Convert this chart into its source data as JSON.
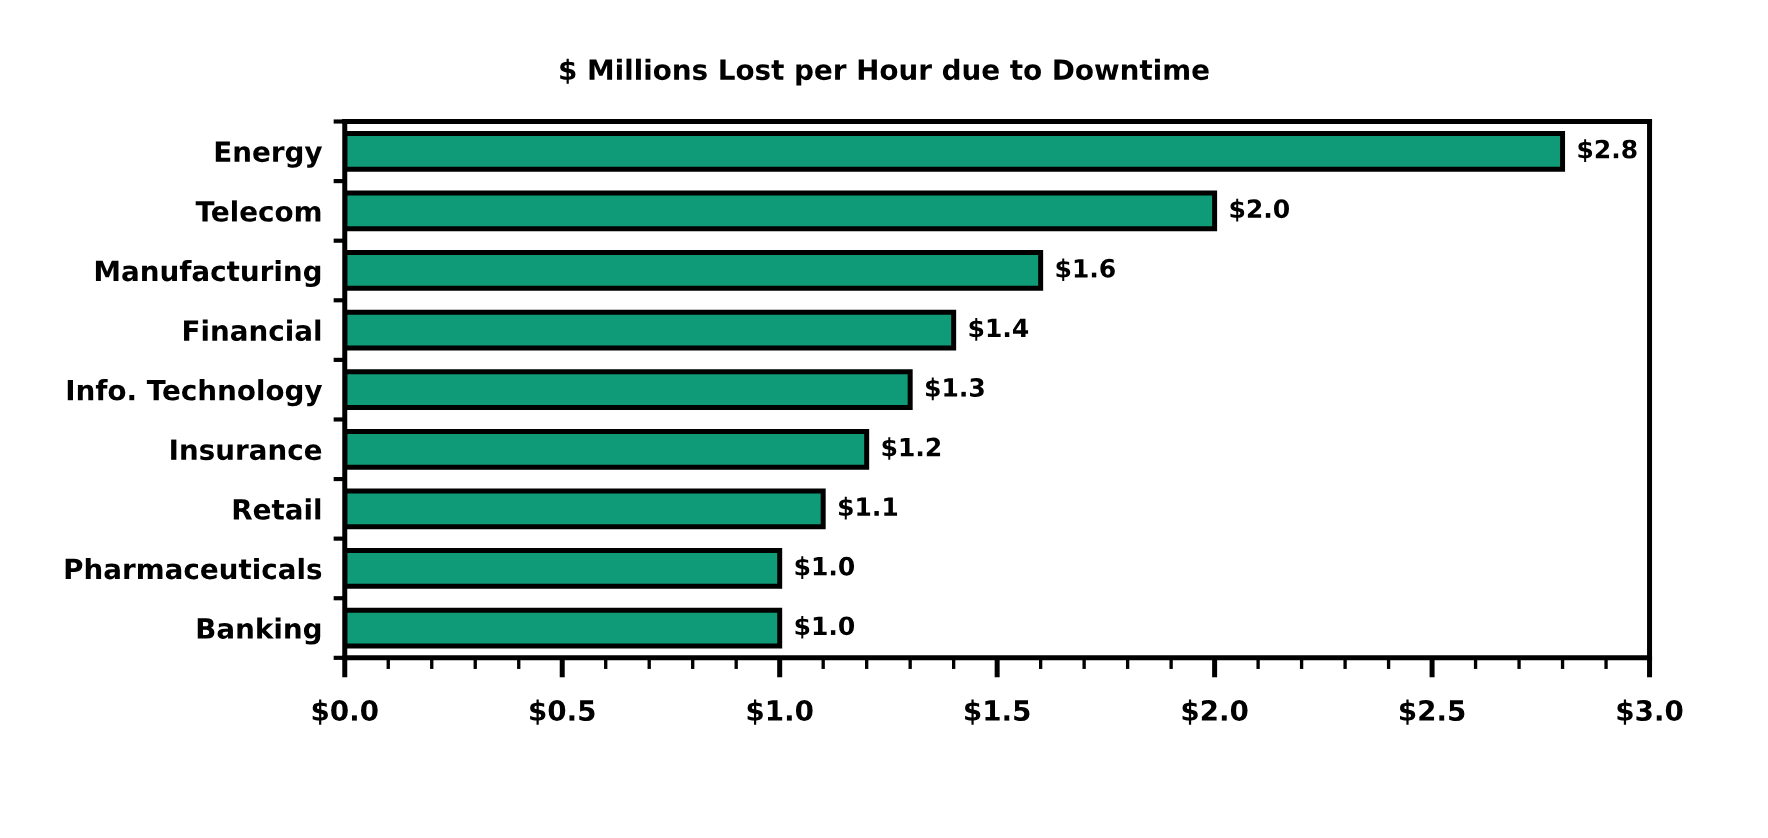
{
  "chart_data": {
    "type": "bar",
    "orientation": "horizontal",
    "title": "$ Millions Lost per Hour due to Downtime",
    "categories": [
      "Energy",
      "Telecom",
      "Manufacturing",
      "Financial",
      "Info. Technology",
      "Insurance",
      "Retail",
      "Pharmaceuticals",
      "Banking"
    ],
    "values": [
      2.8,
      2.0,
      1.6,
      1.4,
      1.3,
      1.2,
      1.1,
      1.0,
      1.0
    ],
    "value_labels": [
      "$2.8",
      "$2.0",
      "$1.6",
      "$1.4",
      "$1.3",
      "$1.2",
      "$1.1",
      "$1.0",
      "$1.0"
    ],
    "color": "#0f9a78",
    "xlim": [
      0,
      3
    ],
    "xticks": [
      {
        "value": 0,
        "label": "$0.0"
      },
      {
        "value": 0.5,
        "label": "$0.5"
      },
      {
        "value": 1,
        "label": "$1.0"
      },
      {
        "value": 1.5,
        "label": "$1.5"
      },
      {
        "value": 2,
        "label": "$2.0"
      },
      {
        "value": 2.5,
        "label": "$2.5"
      },
      {
        "value": 3,
        "label": "$3.0"
      }
    ],
    "grid": false,
    "legend": false
  }
}
